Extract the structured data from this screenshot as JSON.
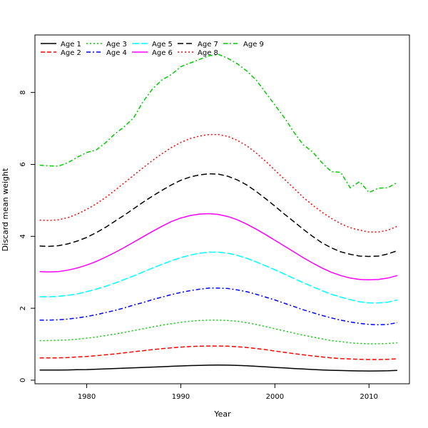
{
  "chart_data": {
    "type": "line",
    "title": "",
    "xlabel": "Year",
    "ylabel": "Discard mean weight",
    "xlim": [
      1974.5,
      2014.3
    ],
    "ylim": [
      -0.1,
      9.6
    ],
    "x_ticks": [
      1980,
      1990,
      2000,
      2010
    ],
    "y_ticks": [
      0,
      2,
      4,
      6,
      8
    ],
    "x_tick_labels": [
      "1980",
      "1990",
      "2000",
      "2010"
    ],
    "y_tick_labels": [
      "0",
      "2",
      "4",
      "6",
      "8"
    ],
    "legend_position": "top-left",
    "x": [
      1975,
      1976,
      1977,
      1978,
      1979,
      1980,
      1981,
      1982,
      1983,
      1984,
      1985,
      1986,
      1987,
      1988,
      1989,
      1990,
      1991,
      1992,
      1993,
      1994,
      1995,
      1996,
      1997,
      1998,
      1999,
      2000,
      2001,
      2002,
      2003,
      2004,
      2005,
      2006,
      2007,
      2008,
      2009,
      2010,
      2011,
      2012,
      2013
    ],
    "series": [
      {
        "name": "Age 1",
        "color": "#000000",
        "dash": "solid",
        "values": [
          0.28,
          0.28,
          0.28,
          0.285,
          0.29,
          0.295,
          0.305,
          0.315,
          0.325,
          0.335,
          0.345,
          0.355,
          0.365,
          0.375,
          0.385,
          0.395,
          0.405,
          0.412,
          0.418,
          0.42,
          0.418,
          0.41,
          0.4,
          0.385,
          0.37,
          0.355,
          0.34,
          0.325,
          0.31,
          0.297,
          0.285,
          0.275,
          0.268,
          0.262,
          0.258,
          0.256,
          0.257,
          0.262,
          0.27
        ]
      },
      {
        "name": "Age 2",
        "color": "#ff0000",
        "dash": "6,3",
        "values": [
          0.62,
          0.62,
          0.62,
          0.63,
          0.645,
          0.66,
          0.68,
          0.705,
          0.73,
          0.76,
          0.79,
          0.82,
          0.85,
          0.875,
          0.9,
          0.92,
          0.935,
          0.945,
          0.95,
          0.95,
          0.945,
          0.93,
          0.91,
          0.88,
          0.85,
          0.81,
          0.775,
          0.74,
          0.705,
          0.675,
          0.645,
          0.62,
          0.6,
          0.59,
          0.58,
          0.575,
          0.575,
          0.58,
          0.595
        ]
      },
      {
        "name": "Age 3",
        "color": "#00cd00",
        "dash": "2,3",
        "values": [
          1.1,
          1.1,
          1.11,
          1.12,
          1.14,
          1.17,
          1.2,
          1.24,
          1.28,
          1.33,
          1.38,
          1.43,
          1.48,
          1.53,
          1.57,
          1.61,
          1.64,
          1.66,
          1.67,
          1.67,
          1.66,
          1.64,
          1.6,
          1.55,
          1.49,
          1.43,
          1.37,
          1.31,
          1.25,
          1.2,
          1.15,
          1.1,
          1.07,
          1.04,
          1.02,
          1.01,
          1.01,
          1.02,
          1.04
        ]
      },
      {
        "name": "Age 4",
        "color": "#0000ff",
        "dash": "6,3,2,3",
        "values": [
          1.67,
          1.67,
          1.68,
          1.7,
          1.73,
          1.77,
          1.82,
          1.88,
          1.94,
          2.01,
          2.09,
          2.16,
          2.24,
          2.31,
          2.38,
          2.44,
          2.49,
          2.53,
          2.56,
          2.56,
          2.55,
          2.51,
          2.46,
          2.39,
          2.31,
          2.23,
          2.14,
          2.05,
          1.96,
          1.88,
          1.8,
          1.73,
          1.67,
          1.62,
          1.58,
          1.55,
          1.54,
          1.55,
          1.6
        ]
      },
      {
        "name": "Age 5",
        "color": "#00ffff",
        "dash": "10,3",
        "values": [
          2.32,
          2.32,
          2.33,
          2.36,
          2.4,
          2.46,
          2.53,
          2.61,
          2.7,
          2.8,
          2.9,
          3.01,
          3.12,
          3.22,
          3.32,
          3.41,
          3.48,
          3.53,
          3.56,
          3.56,
          3.53,
          3.47,
          3.39,
          3.29,
          3.18,
          3.07,
          2.95,
          2.83,
          2.71,
          2.6,
          2.49,
          2.39,
          2.31,
          2.24,
          2.18,
          2.15,
          2.15,
          2.17,
          2.23
        ]
      },
      {
        "name": "Age 6",
        "color": "#ff00ff",
        "dash": "solid",
        "values": [
          3.02,
          3.01,
          3.02,
          3.06,
          3.12,
          3.2,
          3.3,
          3.42,
          3.55,
          3.69,
          3.84,
          3.99,
          4.14,
          4.28,
          4.41,
          4.51,
          4.58,
          4.62,
          4.63,
          4.61,
          4.55,
          4.46,
          4.34,
          4.2,
          4.05,
          3.89,
          3.73,
          3.57,
          3.41,
          3.26,
          3.12,
          3.0,
          2.91,
          2.84,
          2.8,
          2.79,
          2.8,
          2.84,
          2.91
        ]
      },
      {
        "name": "Age 7",
        "color": "#000000",
        "dash": "8,4",
        "values": [
          3.73,
          3.72,
          3.74,
          3.79,
          3.87,
          3.97,
          4.1,
          4.25,
          4.42,
          4.59,
          4.77,
          4.95,
          5.12,
          5.28,
          5.43,
          5.56,
          5.65,
          5.71,
          5.74,
          5.73,
          5.67,
          5.57,
          5.43,
          5.25,
          5.05,
          4.84,
          4.62,
          4.41,
          4.2,
          4.0,
          3.82,
          3.68,
          3.57,
          3.5,
          3.45,
          3.44,
          3.45,
          3.51,
          3.6
        ]
      },
      {
        "name": "Age 8",
        "color": "#ff0000",
        "dash": "2,3",
        "values": [
          4.45,
          4.44,
          4.46,
          4.52,
          4.62,
          4.75,
          4.9,
          5.08,
          5.28,
          5.49,
          5.7,
          5.91,
          6.11,
          6.3,
          6.47,
          6.61,
          6.72,
          6.79,
          6.83,
          6.83,
          6.78,
          6.67,
          6.52,
          6.32,
          6.09,
          5.84,
          5.59,
          5.34,
          5.09,
          4.87,
          4.67,
          4.5,
          4.35,
          4.24,
          4.17,
          4.12,
          4.12,
          4.17,
          4.28
        ]
      },
      {
        "name": "Age 9",
        "color": "#00cd00",
        "dash": "6,3,2,3",
        "values": [
          5.98,
          5.96,
          5.95,
          6.05,
          6.2,
          6.33,
          6.4,
          6.6,
          6.85,
          7.05,
          7.3,
          7.75,
          8.1,
          8.35,
          8.5,
          8.72,
          8.82,
          8.92,
          9.02,
          9.06,
          8.95,
          8.8,
          8.6,
          8.35,
          8.0,
          7.65,
          7.3,
          6.9,
          6.55,
          6.35,
          6.05,
          5.8,
          5.78,
          5.35,
          5.52,
          5.22,
          5.34,
          5.35,
          5.5
        ]
      }
    ]
  }
}
